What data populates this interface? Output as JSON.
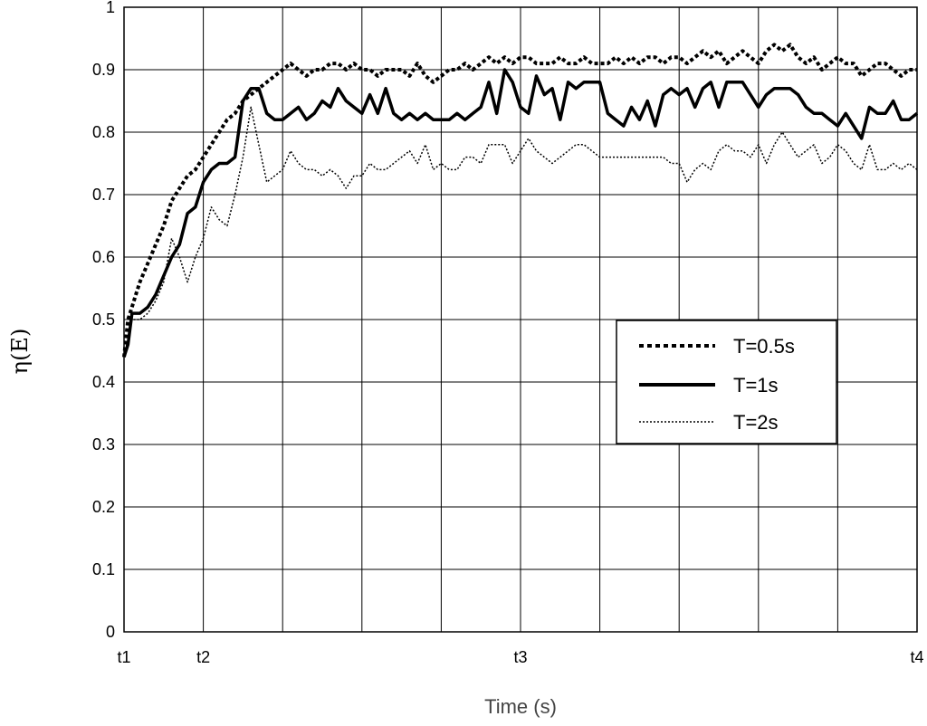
{
  "chart_data": {
    "type": "line",
    "title": "",
    "xlabel": "Time (s)",
    "ylabel": "η(E)",
    "xlim": [
      0,
      10
    ],
    "ylim": [
      0,
      1
    ],
    "x_tick_labels": [
      {
        "x": 0,
        "label": "t1"
      },
      {
        "x": 1,
        "label": "t2"
      },
      {
        "x": 5,
        "label": "t3"
      },
      {
        "x": 10,
        "label": "t4"
      }
    ],
    "y_ticks": [
      "0",
      "0.1",
      "0.2",
      "0.3",
      "0.4",
      "0.5",
      "0.6",
      "0.7",
      "0.8",
      "0.9",
      "1"
    ],
    "grid": true,
    "legend_position": "right-middle",
    "series": [
      {
        "name": "T=0.5s",
        "style": "dashed-bold",
        "x": [
          0,
          0.05,
          0.1,
          0.15,
          0.2,
          0.3,
          0.4,
          0.5,
          0.6,
          0.7,
          0.8,
          0.9,
          1.0,
          1.1,
          1.2,
          1.3,
          1.4,
          1.5,
          1.6,
          1.7,
          1.8,
          1.9,
          2.0,
          2.1,
          2.2,
          2.3,
          2.4,
          2.5,
          2.6,
          2.7,
          2.8,
          2.9,
          3.0,
          3.1,
          3.2,
          3.3,
          3.4,
          3.5,
          3.6,
          3.7,
          3.8,
          3.9,
          4.0,
          4.1,
          4.2,
          4.3,
          4.4,
          4.5,
          4.6,
          4.7,
          4.8,
          4.9,
          5.0,
          5.1,
          5.2,
          5.3,
          5.4,
          5.5,
          5.6,
          5.7,
          5.8,
          5.9,
          6.0,
          6.1,
          6.2,
          6.3,
          6.4,
          6.5,
          6.6,
          6.7,
          6.8,
          6.9,
          7.0,
          7.1,
          7.2,
          7.3,
          7.4,
          7.5,
          7.6,
          7.7,
          7.8,
          7.9,
          8.0,
          8.1,
          8.2,
          8.3,
          8.4,
          8.5,
          8.6,
          8.7,
          8.8,
          8.9,
          9.0,
          9.1,
          9.2,
          9.3,
          9.4,
          9.5,
          9.6,
          9.7,
          9.8,
          9.9,
          10.0
        ],
        "y": [
          0.44,
          0.5,
          0.52,
          0.54,
          0.56,
          0.59,
          0.62,
          0.65,
          0.69,
          0.71,
          0.73,
          0.74,
          0.76,
          0.78,
          0.8,
          0.82,
          0.83,
          0.85,
          0.86,
          0.87,
          0.88,
          0.89,
          0.9,
          0.91,
          0.9,
          0.89,
          0.9,
          0.9,
          0.91,
          0.91,
          0.9,
          0.91,
          0.9,
          0.9,
          0.89,
          0.9,
          0.9,
          0.9,
          0.89,
          0.91,
          0.89,
          0.88,
          0.89,
          0.9,
          0.9,
          0.91,
          0.9,
          0.91,
          0.92,
          0.91,
          0.92,
          0.91,
          0.92,
          0.92,
          0.91,
          0.91,
          0.91,
          0.92,
          0.91,
          0.91,
          0.92,
          0.91,
          0.91,
          0.91,
          0.92,
          0.91,
          0.92,
          0.91,
          0.92,
          0.92,
          0.91,
          0.92,
          0.92,
          0.91,
          0.92,
          0.93,
          0.92,
          0.93,
          0.91,
          0.92,
          0.93,
          0.92,
          0.91,
          0.93,
          0.94,
          0.93,
          0.94,
          0.92,
          0.91,
          0.92,
          0.9,
          0.91,
          0.92,
          0.91,
          0.91,
          0.89,
          0.9,
          0.91,
          0.91,
          0.9,
          0.89,
          0.9,
          0.9
        ]
      },
      {
        "name": "T=1s",
        "style": "solid-bold",
        "x": [
          0,
          0.05,
          0.1,
          0.15,
          0.2,
          0.3,
          0.4,
          0.5,
          0.6,
          0.7,
          0.8,
          0.9,
          1.0,
          1.1,
          1.2,
          1.3,
          1.4,
          1.5,
          1.6,
          1.7,
          1.8,
          1.9,
          2.0,
          2.1,
          2.2,
          2.3,
          2.4,
          2.5,
          2.6,
          2.7,
          2.8,
          2.9,
          3.0,
          3.1,
          3.2,
          3.3,
          3.4,
          3.5,
          3.6,
          3.7,
          3.8,
          3.9,
          4.0,
          4.1,
          4.2,
          4.3,
          4.4,
          4.5,
          4.6,
          4.7,
          4.8,
          4.9,
          5.0,
          5.1,
          5.2,
          5.3,
          5.4,
          5.5,
          5.6,
          5.7,
          5.8,
          5.9,
          6.0,
          6.1,
          6.2,
          6.3,
          6.4,
          6.5,
          6.6,
          6.7,
          6.8,
          6.9,
          7.0,
          7.1,
          7.2,
          7.3,
          7.4,
          7.5,
          7.6,
          7.7,
          7.8,
          7.9,
          8.0,
          8.1,
          8.2,
          8.3,
          8.4,
          8.5,
          8.6,
          8.7,
          8.8,
          8.9,
          9.0,
          9.1,
          9.2,
          9.3,
          9.4,
          9.5,
          9.6,
          9.7,
          9.8,
          9.9,
          10.0
        ],
        "y": [
          0.44,
          0.46,
          0.51,
          0.51,
          0.51,
          0.52,
          0.54,
          0.57,
          0.6,
          0.62,
          0.67,
          0.68,
          0.72,
          0.74,
          0.75,
          0.75,
          0.76,
          0.85,
          0.87,
          0.87,
          0.83,
          0.82,
          0.82,
          0.83,
          0.84,
          0.82,
          0.83,
          0.85,
          0.84,
          0.87,
          0.85,
          0.84,
          0.83,
          0.86,
          0.83,
          0.87,
          0.83,
          0.82,
          0.83,
          0.82,
          0.83,
          0.82,
          0.82,
          0.82,
          0.83,
          0.82,
          0.83,
          0.84,
          0.88,
          0.83,
          0.9,
          0.88,
          0.84,
          0.83,
          0.89,
          0.86,
          0.87,
          0.82,
          0.88,
          0.87,
          0.88,
          0.88,
          0.88,
          0.83,
          0.82,
          0.81,
          0.84,
          0.82,
          0.85,
          0.81,
          0.86,
          0.87,
          0.86,
          0.87,
          0.84,
          0.87,
          0.88,
          0.84,
          0.88,
          0.88,
          0.88,
          0.86,
          0.84,
          0.86,
          0.87,
          0.87,
          0.87,
          0.86,
          0.84,
          0.83,
          0.83,
          0.82,
          0.81,
          0.83,
          0.81,
          0.79,
          0.84,
          0.83,
          0.83,
          0.85,
          0.82,
          0.82,
          0.83
        ]
      },
      {
        "name": "T=2s",
        "style": "dotted-thin",
        "x": [
          0,
          0.05,
          0.1,
          0.15,
          0.2,
          0.3,
          0.4,
          0.5,
          0.6,
          0.7,
          0.8,
          0.9,
          1.0,
          1.1,
          1.2,
          1.3,
          1.4,
          1.5,
          1.6,
          1.7,
          1.8,
          1.9,
          2.0,
          2.1,
          2.2,
          2.3,
          2.4,
          2.5,
          2.6,
          2.7,
          2.8,
          2.9,
          3.0,
          3.1,
          3.2,
          3.3,
          3.4,
          3.5,
          3.6,
          3.7,
          3.8,
          3.9,
          4.0,
          4.1,
          4.2,
          4.3,
          4.4,
          4.5,
          4.6,
          4.7,
          4.8,
          4.9,
          5.0,
          5.1,
          5.2,
          5.3,
          5.4,
          5.5,
          5.6,
          5.7,
          5.8,
          5.9,
          6.0,
          6.1,
          6.2,
          6.3,
          6.4,
          6.5,
          6.6,
          6.7,
          6.8,
          6.9,
          7.0,
          7.1,
          7.2,
          7.3,
          7.4,
          7.5,
          7.6,
          7.7,
          7.8,
          7.9,
          8.0,
          8.1,
          8.2,
          8.3,
          8.4,
          8.5,
          8.6,
          8.7,
          8.8,
          8.9,
          9.0,
          9.1,
          9.2,
          9.3,
          9.4,
          9.5,
          9.6,
          9.7,
          9.8,
          9.9,
          10.0
        ],
        "y": [
          0.44,
          0.47,
          0.5,
          0.5,
          0.5,
          0.51,
          0.53,
          0.56,
          0.63,
          0.6,
          0.56,
          0.6,
          0.63,
          0.68,
          0.66,
          0.65,
          0.7,
          0.76,
          0.84,
          0.78,
          0.72,
          0.73,
          0.74,
          0.77,
          0.75,
          0.74,
          0.74,
          0.73,
          0.74,
          0.73,
          0.71,
          0.73,
          0.73,
          0.75,
          0.74,
          0.74,
          0.75,
          0.76,
          0.77,
          0.75,
          0.78,
          0.74,
          0.75,
          0.74,
          0.74,
          0.76,
          0.76,
          0.75,
          0.78,
          0.78,
          0.78,
          0.75,
          0.77,
          0.79,
          0.77,
          0.76,
          0.75,
          0.76,
          0.77,
          0.78,
          0.78,
          0.77,
          0.76,
          0.76,
          0.76,
          0.76,
          0.76,
          0.76,
          0.76,
          0.76,
          0.76,
          0.75,
          0.75,
          0.72,
          0.74,
          0.75,
          0.74,
          0.77,
          0.78,
          0.77,
          0.77,
          0.76,
          0.78,
          0.75,
          0.78,
          0.8,
          0.78,
          0.76,
          0.77,
          0.78,
          0.75,
          0.76,
          0.78,
          0.77,
          0.75,
          0.74,
          0.78,
          0.74,
          0.74,
          0.75,
          0.74,
          0.75,
          0.74
        ]
      }
    ]
  }
}
